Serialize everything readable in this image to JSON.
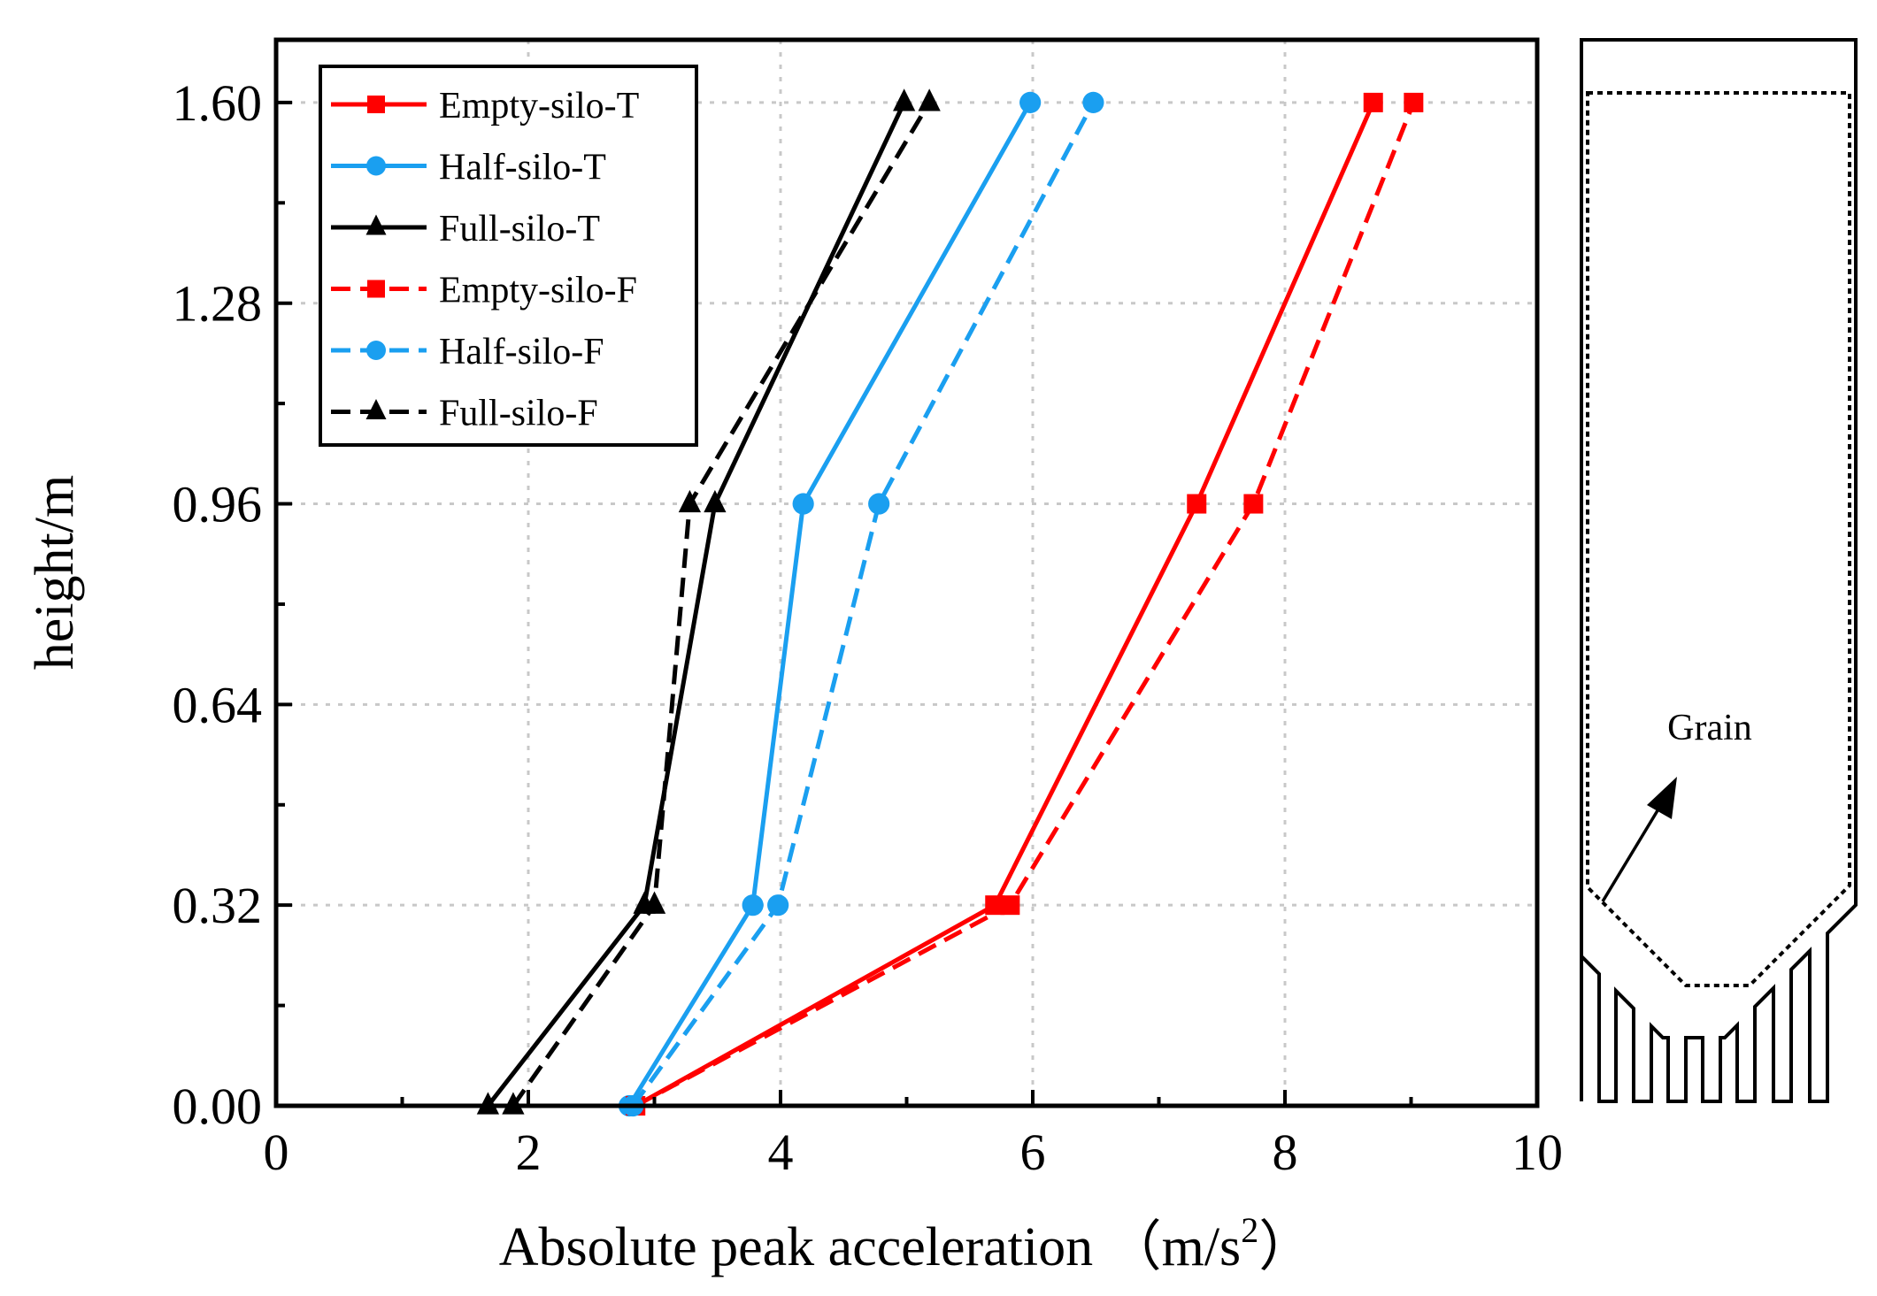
{
  "chart_data": {
    "type": "line",
    "title": "",
    "xlabel": "Absolute peak acceleration （m/s",
    "xlabel_superscript": "2",
    "xlabel_suffix": "）",
    "ylabel": "height/m",
    "xlim": [
      0,
      10
    ],
    "ylim": [
      0,
      1.7
    ],
    "x_ticks": [
      "0",
      "2",
      "4",
      "6",
      "8",
      "10"
    ],
    "y_ticks": [
      "0.00",
      "0.32",
      "0.64",
      "0.96",
      "1.28",
      "1.60"
    ],
    "y_tick_values": [
      0,
      0.32,
      0.64,
      0.96,
      1.28,
      1.6
    ],
    "grid": true,
    "legend_position": "top-left",
    "heights": [
      0,
      0.32,
      0.96,
      1.6
    ],
    "series": [
      {
        "name": "Empty-silo-T",
        "color": "#ff0000",
        "marker": "square",
        "dashed": false,
        "x": [
          2.85,
          5.7,
          7.3,
          8.7
        ]
      },
      {
        "name": "Half-silo-T",
        "color": "#1a9ff0",
        "marker": "circle",
        "dashed": false,
        "x": [
          2.8,
          3.78,
          4.18,
          5.98
        ]
      },
      {
        "name": "Full-silo-T",
        "color": "#000000",
        "marker": "triangle",
        "dashed": false,
        "x": [
          1.68,
          2.92,
          3.48,
          4.98
        ]
      },
      {
        "name": "Empty-silo-F",
        "color": "#ff0000",
        "marker": "square",
        "dashed": true,
        "x": [
          2.85,
          5.82,
          7.75,
          9.02
        ]
      },
      {
        "name": "Half-silo-F",
        "color": "#1a9ff0",
        "marker": "circle",
        "dashed": true,
        "x": [
          2.83,
          3.98,
          4.78,
          6.48
        ]
      },
      {
        "name": "Full-silo-F",
        "color": "#000000",
        "marker": "triangle",
        "dashed": true,
        "x": [
          1.88,
          3.0,
          3.28,
          5.18
        ]
      }
    ]
  },
  "diagram": {
    "label": "Grain"
  }
}
